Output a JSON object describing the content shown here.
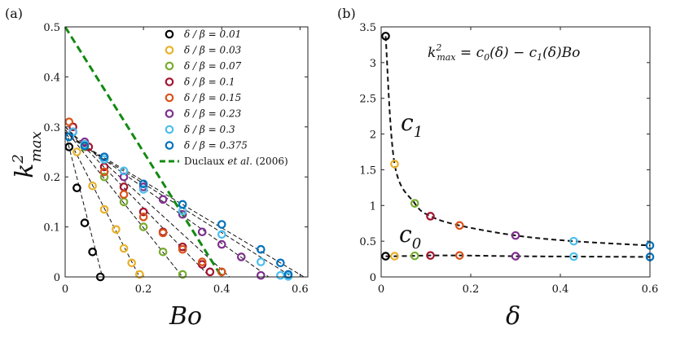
{
  "chart_data": [
    {
      "panel_label": "(a)",
      "type": "scatter",
      "xlabel": "Bo",
      "ylabel": "k",
      "ylabel_sup": "2",
      "ylabel_sub": "max",
      "xlim": [
        0,
        0.62
      ],
      "ylim": [
        0,
        0.5
      ],
      "xticks": [
        0,
        0.2,
        0.4,
        0.6
      ],
      "xtick_labels": [
        "0",
        "0.2",
        "0.4",
        "0.6"
      ],
      "yticks": [
        0,
        0.1,
        0.2,
        0.3,
        0.4,
        0.5
      ],
      "ytick_labels": [
        "0",
        "0.1",
        "0.2",
        "0.3",
        "0.4",
        "0.5"
      ],
      "series": [
        {
          "name": "δ / β = 0.01",
          "color": "#000000",
          "points": [
            [
              0.01,
              0.26
            ],
            [
              0.03,
              0.178
            ],
            [
              0.05,
              0.108
            ],
            [
              0.07,
              0.05
            ],
            [
              0.09,
              0.0
            ]
          ],
          "fit": [
            [
              0,
              0.29
            ],
            [
              0.095,
              0
            ]
          ]
        },
        {
          "name": "δ / β = 0.03",
          "color": "#e8b12a",
          "points": [
            [
              0.03,
              0.25
            ],
            [
              0.07,
              0.182
            ],
            [
              0.1,
              0.135
            ],
            [
              0.13,
              0.095
            ],
            [
              0.15,
              0.057
            ],
            [
              0.17,
              0.028
            ],
            [
              0.19,
              0.005
            ]
          ],
          "fit": [
            [
              0,
              0.29
            ],
            [
              0.19,
              0
            ]
          ]
        },
        {
          "name": "δ / β = 0.07",
          "color": "#77ac30",
          "points": [
            [
              0.05,
              0.26
            ],
            [
              0.1,
              0.2
            ],
            [
              0.15,
              0.15
            ],
            [
              0.2,
              0.1
            ],
            [
              0.25,
              0.05
            ],
            [
              0.3,
              0.005
            ]
          ],
          "fit": [
            [
              0,
              0.295
            ],
            [
              0.3,
              0
            ]
          ]
        },
        {
          "name": "δ / β = 0.1",
          "color": "#a2142f",
          "points": [
            [
              0.02,
              0.3
            ],
            [
              0.06,
              0.26
            ],
            [
              0.1,
              0.22
            ],
            [
              0.15,
              0.18
            ],
            [
              0.2,
              0.13
            ],
            [
              0.25,
              0.09
            ],
            [
              0.3,
              0.06
            ],
            [
              0.35,
              0.025
            ],
            [
              0.37,
              0.01
            ]
          ],
          "fit": [
            [
              0,
              0.3
            ],
            [
              0.37,
              0
            ]
          ]
        },
        {
          "name": "δ / β = 0.15",
          "color": "#d95319",
          "points": [
            [
              0.01,
              0.31
            ],
            [
              0.05,
              0.265
            ],
            [
              0.1,
              0.21
            ],
            [
              0.15,
              0.165
            ],
            [
              0.2,
              0.12
            ],
            [
              0.25,
              0.088
            ],
            [
              0.3,
              0.055
            ],
            [
              0.35,
              0.03
            ],
            [
              0.4,
              0.01
            ]
          ],
          "fit": [
            [
              0,
              0.3
            ],
            [
              0.42,
              0
            ]
          ]
        },
        {
          "name": "δ / β = 0.23",
          "color": "#7e2f8e",
          "points": [
            [
              0.02,
              0.29
            ],
            [
              0.05,
              0.27
            ],
            [
              0.1,
              0.24
            ],
            [
              0.15,
              0.2
            ],
            [
              0.2,
              0.18
            ],
            [
              0.25,
              0.155
            ],
            [
              0.3,
              0.125
            ],
            [
              0.35,
              0.09
            ],
            [
              0.4,
              0.065
            ],
            [
              0.45,
              0.04
            ],
            [
              0.5,
              0.003
            ]
          ],
          "fit": [
            [
              0,
              0.29
            ],
            [
              0.52,
              0
            ]
          ]
        },
        {
          "name": "δ / β = 0.3",
          "color": "#4dbeee",
          "points": [
            [
              0.02,
              0.29
            ],
            [
              0.05,
              0.265
            ],
            [
              0.1,
              0.235
            ],
            [
              0.15,
              0.212
            ],
            [
              0.2,
              0.175
            ],
            [
              0.3,
              0.132
            ],
            [
              0.4,
              0.085
            ],
            [
              0.5,
              0.03
            ],
            [
              0.55,
              0.003
            ],
            [
              0.57,
              0.001
            ]
          ],
          "fit": [
            [
              0,
              0.285
            ],
            [
              0.58,
              0
            ]
          ]
        },
        {
          "name": "δ / β = 0.375",
          "color": "#0072bd",
          "points": [
            [
              0.01,
              0.28
            ],
            [
              0.05,
              0.262
            ],
            [
              0.1,
              0.24
            ],
            [
              0.2,
              0.186
            ],
            [
              0.3,
              0.145
            ],
            [
              0.4,
              0.105
            ],
            [
              0.5,
              0.055
            ],
            [
              0.55,
              0.028
            ],
            [
              0.57,
              0.005
            ]
          ],
          "fit": [
            [
              0,
              0.285
            ],
            [
              0.61,
              0
            ]
          ]
        }
      ],
      "reference_line": {
        "name": "Duclaux et al. (2006)",
        "legend_prefix": "Duclaux ",
        "legend_italic": "et al.",
        "legend_suffix": " (2006)",
        "color": "#138a13",
        "points": [
          [
            0,
            0.5
          ],
          [
            0.4,
            0
          ]
        ]
      }
    },
    {
      "panel_label": "(b)",
      "type": "scatter",
      "xlabel": "δ",
      "xlim": [
        0,
        0.6
      ],
      "ylim": [
        0,
        3.5
      ],
      "xticks": [
        0,
        0.2,
        0.4,
        0.6
      ],
      "xtick_labels": [
        "0",
        "0.2",
        "0.4",
        "0.6"
      ],
      "yticks": [
        0,
        0.5,
        1,
        1.5,
        2,
        2.5,
        3,
        3.5
      ],
      "ytick_labels": [
        "0",
        "0.5",
        "1",
        "1.5",
        "2",
        "2.5",
        "3",
        "3.5"
      ],
      "equation_parts": [
        "k",
        "2",
        "max",
        " = c",
        "0",
        "(δ) − c",
        "1",
        "(δ)Bo"
      ],
      "c1_label": [
        "c",
        "1"
      ],
      "c0_label": [
        "c",
        "0"
      ],
      "c1_points": [
        {
          "x": 0.01,
          "y": 3.37,
          "color": "#000000"
        },
        {
          "x": 0.03,
          "y": 1.58,
          "color": "#e8b12a"
        },
        {
          "x": 0.075,
          "y": 1.03,
          "color": "#77ac30"
        },
        {
          "x": 0.11,
          "y": 0.85,
          "color": "#a2142f"
        },
        {
          "x": 0.175,
          "y": 0.72,
          "color": "#d95319"
        },
        {
          "x": 0.3,
          "y": 0.58,
          "color": "#7e2f8e"
        },
        {
          "x": 0.43,
          "y": 0.5,
          "color": "#4dbeee"
        },
        {
          "x": 0.6,
          "y": 0.44,
          "color": "#0072bd"
        }
      ],
      "c0_points": [
        {
          "x": 0.01,
          "y": 0.29,
          "color": "#000000"
        },
        {
          "x": 0.03,
          "y": 0.29,
          "color": "#e8b12a"
        },
        {
          "x": 0.075,
          "y": 0.295,
          "color": "#77ac30"
        },
        {
          "x": 0.11,
          "y": 0.3,
          "color": "#a2142f"
        },
        {
          "x": 0.175,
          "y": 0.3,
          "color": "#d95319"
        },
        {
          "x": 0.3,
          "y": 0.29,
          "color": "#7e2f8e"
        },
        {
          "x": 0.43,
          "y": 0.285,
          "color": "#4dbeee"
        },
        {
          "x": 0.6,
          "y": 0.28,
          "color": "#0072bd"
        }
      ]
    }
  ]
}
